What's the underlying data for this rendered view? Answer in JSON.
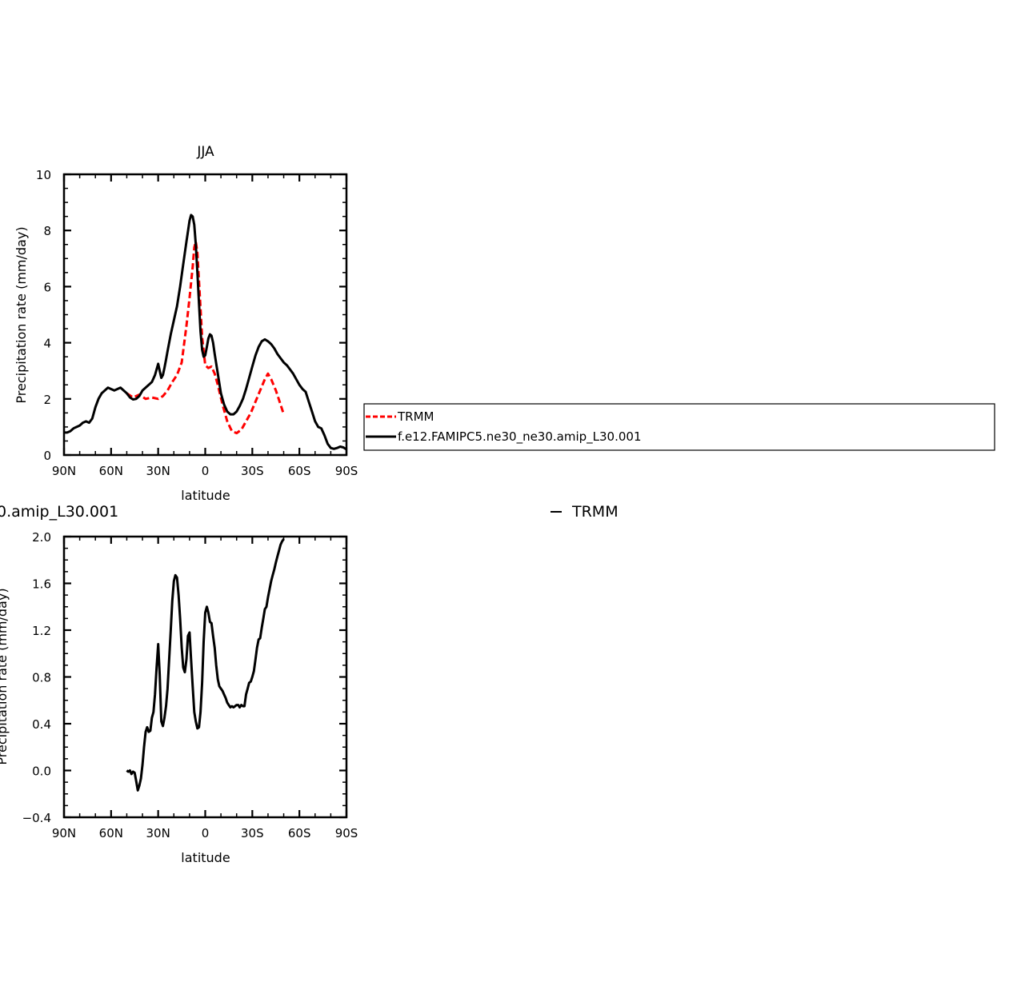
{
  "chart_data": [
    {
      "type": "line",
      "title": "JJA",
      "xlabel": "latitude",
      "ylabel": "Precipitation rate (mm/day)",
      "xlim": [
        90,
        -90
      ],
      "ylim": [
        0,
        10
      ],
      "xticks": [
        90,
        60,
        30,
        0,
        -30,
        -60,
        -90
      ],
      "xtick_labels": [
        "90N",
        "60N",
        "30N",
        "0",
        "30S",
        "60S",
        "90S"
      ],
      "yticks": [
        0,
        2,
        4,
        6,
        8,
        10
      ],
      "ytick_labels": [
        "0",
        "2",
        "4",
        "6",
        "8",
        "10"
      ],
      "grid": false,
      "legend_position": "right",
      "colors": {
        "TRMM": "#ff0000",
        "model": "#000000"
      },
      "series": [
        {
          "name": "TRMM",
          "style": "dashed",
          "x": [
            50,
            46,
            42,
            38,
            34,
            30,
            27,
            24,
            21,
            18,
            15,
            12,
            10,
            8,
            7,
            6,
            5,
            4,
            2,
            0,
            -2,
            -4,
            -6,
            -8,
            -11,
            -14,
            -17,
            -20,
            -23,
            -26,
            -29,
            -32,
            -35,
            -38,
            -40,
            -42,
            -45,
            -48,
            -50
          ],
          "y": [
            2.2,
            2.05,
            2.15,
            2.0,
            2.05,
            2.0,
            2.1,
            2.3,
            2.6,
            2.85,
            3.3,
            4.6,
            5.6,
            6.7,
            7.4,
            7.6,
            7.2,
            6.2,
            4.2,
            3.2,
            3.1,
            3.15,
            2.9,
            2.5,
            1.8,
            1.2,
            0.85,
            0.78,
            0.9,
            1.2,
            1.5,
            1.9,
            2.3,
            2.7,
            2.9,
            2.7,
            2.3,
            1.8,
            1.45
          ]
        },
        {
          "name": "f.e12.FAMIPC5.ne30_ne30.amip_L30.001",
          "style": "solid",
          "x": [
            90,
            88,
            86,
            84,
            82,
            80,
            78,
            76,
            74,
            72,
            70,
            68,
            66,
            64,
            62,
            60,
            58,
            56,
            54,
            52,
            50,
            48,
            46,
            44,
            42,
            40,
            38,
            36,
            34,
            32,
            30,
            29,
            28,
            27,
            26,
            25,
            24,
            22,
            20,
            18,
            16,
            14,
            12,
            10,
            9,
            8,
            7,
            6,
            5,
            4,
            3,
            2,
            1,
            0,
            -1,
            -2,
            -3,
            -4,
            -5,
            -6,
            -8,
            -10,
            -12,
            -14,
            -16,
            -18,
            -20,
            -22,
            -24,
            -26,
            -28,
            -30,
            -32,
            -34,
            -36,
            -38,
            -40,
            -42,
            -44,
            -46,
            -48,
            -50,
            -52,
            -54,
            -56,
            -58,
            -60,
            -62,
            -64,
            -66,
            -68,
            -70,
            -72,
            -74,
            -76,
            -78,
            -80,
            -82,
            -84,
            -86,
            -88,
            -90
          ],
          "y": [
            0.8,
            0.8,
            0.85,
            0.95,
            1.0,
            1.05,
            1.15,
            1.2,
            1.15,
            1.3,
            1.7,
            2.0,
            2.2,
            2.3,
            2.4,
            2.35,
            2.3,
            2.35,
            2.4,
            2.3,
            2.2,
            2.05,
            1.98,
            2.0,
            2.1,
            2.3,
            2.4,
            2.5,
            2.6,
            2.85,
            3.25,
            3.0,
            2.75,
            2.85,
            3.1,
            3.4,
            3.7,
            4.3,
            4.8,
            5.3,
            6.0,
            6.8,
            7.6,
            8.35,
            8.55,
            8.5,
            8.2,
            7.5,
            6.5,
            5.4,
            4.4,
            3.75,
            3.5,
            3.55,
            3.85,
            4.15,
            4.3,
            4.25,
            4.0,
            3.6,
            2.9,
            2.2,
            1.8,
            1.55,
            1.45,
            1.45,
            1.55,
            1.75,
            2.0,
            2.35,
            2.75,
            3.15,
            3.55,
            3.85,
            4.05,
            4.12,
            4.05,
            3.95,
            3.8,
            3.6,
            3.45,
            3.3,
            3.2,
            3.05,
            2.9,
            2.7,
            2.5,
            2.35,
            2.25,
            1.9,
            1.55,
            1.2,
            1.0,
            0.95,
            0.7,
            0.4,
            0.25,
            0.22,
            0.25,
            0.3,
            0.27,
            0.2
          ]
        }
      ]
    },
    {
      "type": "line",
      "title": "0.amip_L30.001",
      "subtitle_right": "TRMM",
      "xlabel": "latitude",
      "ylabel": "Precipitation rate (mm/day)",
      "xlim": [
        90,
        -90
      ],
      "ylim": [
        -0.4,
        2.0
      ],
      "xticks": [
        90,
        60,
        30,
        0,
        -30,
        -60,
        -90
      ],
      "xtick_labels": [
        "90N",
        "60N",
        "30N",
        "0",
        "30S",
        "60S",
        "90S"
      ],
      "yticks": [
        -0.4,
        0.0,
        0.4,
        0.8,
        1.2,
        1.6,
        2.0
      ],
      "ytick_labels": [
        "−0.4",
        "0.0",
        "0.4",
        "0.8",
        "1.2",
        "1.6",
        "2.0"
      ],
      "grid": false,
      "colors": {
        "difference": "#000000"
      },
      "series": [
        {
          "name": "",
          "style": "solid",
          "x": [
            50,
            49,
            48,
            47,
            46,
            45,
            44,
            43,
            42,
            41,
            40,
            39,
            38,
            37,
            36,
            35,
            34,
            33,
            32,
            31,
            30,
            29,
            28,
            27,
            26,
            25,
            24,
            23,
            22,
            21,
            20,
            19,
            18,
            17,
            16,
            15,
            14,
            13,
            12,
            11,
            10,
            9,
            8,
            7,
            6,
            5,
            4,
            3,
            2,
            1,
            0,
            -1,
            -2,
            -3,
            -4,
            -5,
            -6,
            -7,
            -8,
            -9,
            -10,
            -11,
            -12,
            -13,
            -14,
            -15,
            -16,
            -17,
            -18,
            -19,
            -20,
            -21,
            -22,
            -23,
            -24,
            -25,
            -26,
            -27,
            -28,
            -29,
            -30,
            -31,
            -32,
            -33,
            -34,
            -35,
            -36,
            -37,
            -38,
            -39,
            -40,
            -41,
            -42,
            -43,
            -44,
            -45,
            -46,
            -47,
            -48,
            -49,
            -50
          ],
          "y": [
            0.0,
            -0.01,
            0.0,
            -0.03,
            -0.01,
            -0.02,
            -0.09,
            -0.17,
            -0.13,
            -0.07,
            0.05,
            0.2,
            0.33,
            0.37,
            0.33,
            0.34,
            0.45,
            0.5,
            0.65,
            0.88,
            1.08,
            0.82,
            0.42,
            0.38,
            0.45,
            0.55,
            0.7,
            0.95,
            1.2,
            1.45,
            1.62,
            1.67,
            1.65,
            1.5,
            1.3,
            1.05,
            0.88,
            0.84,
            0.95,
            1.15,
            1.18,
            0.95,
            0.72,
            0.5,
            0.42,
            0.36,
            0.37,
            0.5,
            0.75,
            1.1,
            1.35,
            1.4,
            1.35,
            1.27,
            1.26,
            1.15,
            1.05,
            0.9,
            0.78,
            0.72,
            0.7,
            0.68,
            0.65,
            0.62,
            0.58,
            0.56,
            0.54,
            0.55,
            0.54,
            0.55,
            0.56,
            0.56,
            0.54,
            0.56,
            0.55,
            0.55,
            0.65,
            0.7,
            0.75,
            0.76,
            0.8,
            0.85,
            0.95,
            1.05,
            1.12,
            1.13,
            1.22,
            1.3,
            1.38,
            1.4,
            1.48,
            1.55,
            1.62,
            1.67,
            1.72,
            1.78,
            1.83,
            1.88,
            1.93,
            1.96,
            1.98
          ]
        }
      ]
    }
  ]
}
